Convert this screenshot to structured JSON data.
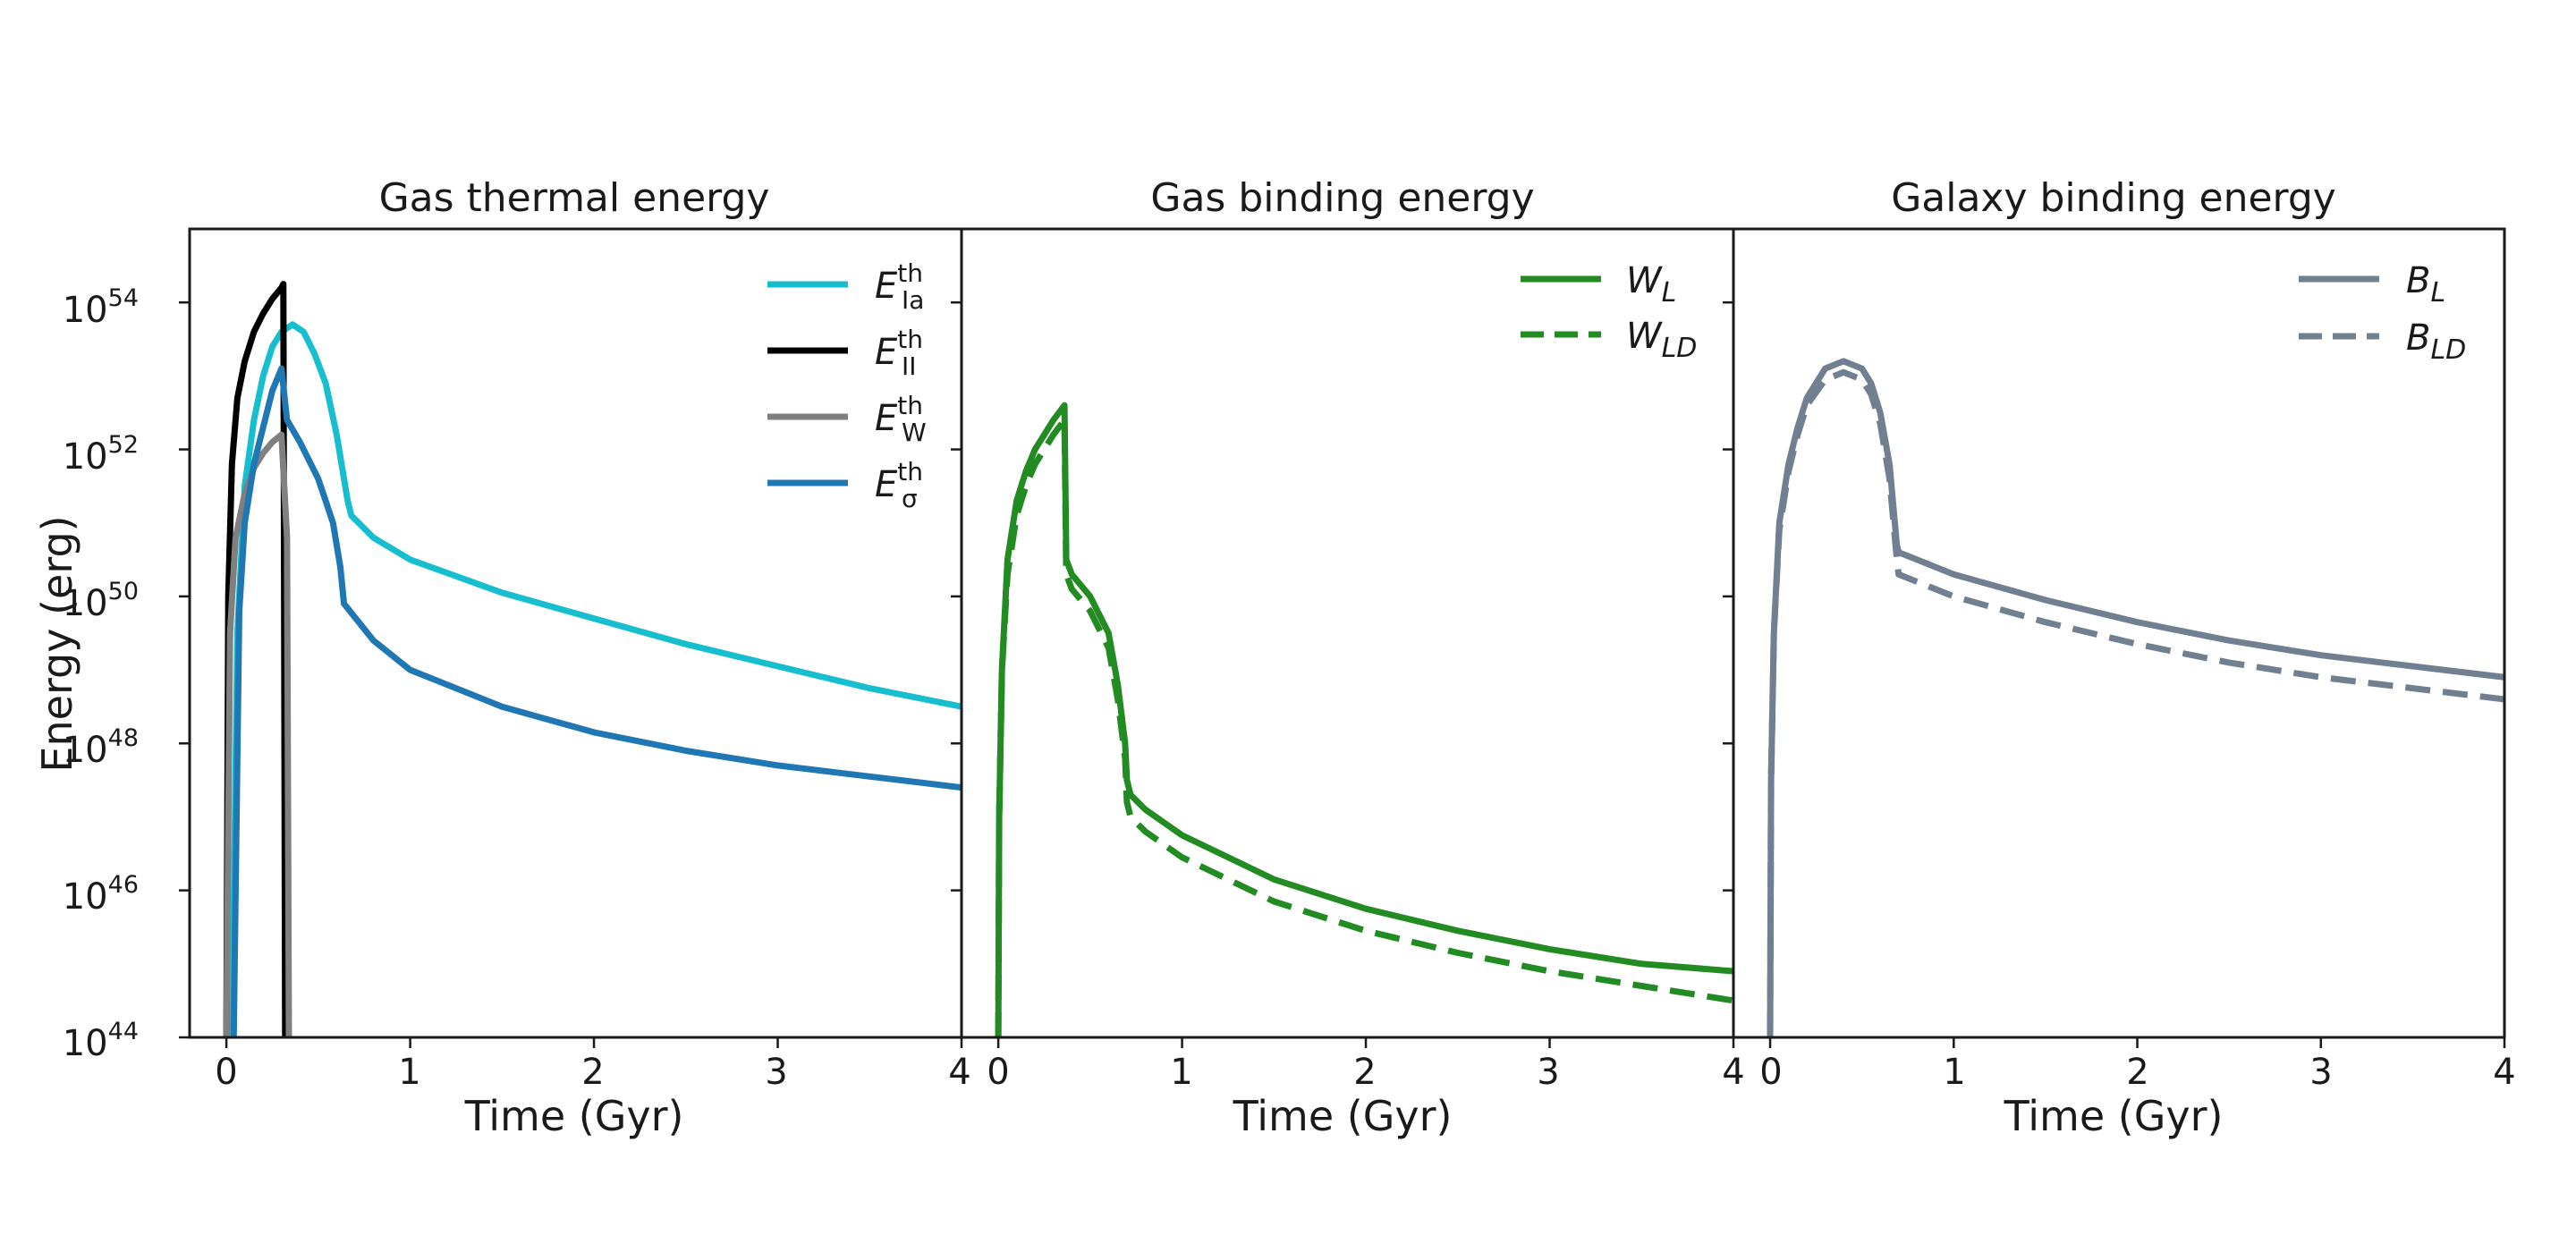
{
  "chart_data": [
    {
      "type": "line",
      "title": "Gas thermal energy",
      "xlabel": "Time (Gyr)",
      "ylabel": "Energy (erg)",
      "xlim": [
        -0.2,
        4
      ],
      "ylim_log10": [
        44,
        55
      ],
      "yscale": "log",
      "xticks": [
        "0",
        "1",
        "2",
        "3",
        "4"
      ],
      "yticks": [
        {
          "base": "10",
          "exp": "44"
        },
        {
          "base": "10",
          "exp": "46"
        },
        {
          "base": "10",
          "exp": "48"
        },
        {
          "base": "10",
          "exp": "50"
        },
        {
          "base": "10",
          "exp": "52"
        },
        {
          "base": "10",
          "exp": "54"
        }
      ],
      "legend_position": "top-right",
      "series": [
        {
          "name": "E_Ia^th",
          "label_base": "E",
          "label_sup": "th",
          "label_sub": "Ia",
          "color": "#17becf",
          "dash": "solid",
          "x": [
            0.03,
            0.06,
            0.1,
            0.15,
            0.2,
            0.25,
            0.3,
            0.36,
            0.42,
            0.48,
            0.54,
            0.6,
            0.66,
            0.68,
            0.8,
            1.0,
            1.5,
            2.0,
            2.5,
            3.0,
            3.5,
            4.0
          ],
          "log_y": [
            44,
            49.5,
            51.5,
            52.4,
            53.0,
            53.4,
            53.6,
            53.7,
            53.6,
            53.3,
            52.9,
            52.2,
            51.3,
            51.1,
            50.8,
            50.5,
            50.05,
            49.7,
            49.35,
            49.05,
            48.75,
            48.5
          ]
        },
        {
          "name": "E_II^th",
          "label_base": "E",
          "label_sup": "th",
          "label_sub": "II",
          "color": "#000000",
          "dash": "solid",
          "x": [
            0.0,
            0.01,
            0.03,
            0.06,
            0.1,
            0.15,
            0.2,
            0.25,
            0.3,
            0.31,
            0.32,
            0.33
          ],
          "log_y": [
            44,
            50.0,
            51.8,
            52.7,
            53.2,
            53.6,
            53.85,
            54.05,
            54.2,
            54.25,
            44,
            44
          ]
        },
        {
          "name": "E_W^th",
          "label_base": "E",
          "label_sup": "th",
          "label_sub": "W",
          "color": "#808080",
          "dash": "solid",
          "x": [
            0.0,
            0.02,
            0.05,
            0.1,
            0.15,
            0.2,
            0.25,
            0.3,
            0.33,
            0.34,
            0.35
          ],
          "log_y": [
            44,
            49.5,
            50.8,
            51.4,
            51.75,
            51.95,
            52.1,
            52.2,
            50.8,
            44,
            44
          ]
        },
        {
          "name": "E_sigma^th",
          "label_base": "E",
          "label_sup": "th",
          "label_sub": "σ",
          "color": "#1f77b4",
          "dash": "solid",
          "x": [
            0.04,
            0.07,
            0.1,
            0.15,
            0.2,
            0.25,
            0.3,
            0.33,
            0.4,
            0.5,
            0.58,
            0.62,
            0.64,
            0.8,
            1.0,
            1.5,
            2.0,
            2.5,
            3.0,
            3.5,
            4.0
          ],
          "log_y": [
            44,
            49.8,
            51.0,
            51.8,
            52.3,
            52.8,
            53.1,
            52.4,
            52.1,
            51.6,
            51.0,
            50.4,
            49.9,
            49.4,
            49.0,
            48.5,
            48.15,
            47.9,
            47.7,
            47.55,
            47.4
          ]
        }
      ]
    },
    {
      "type": "line",
      "title": "Gas binding energy",
      "xlabel": "Time (Gyr)",
      "xlim": [
        -0.2,
        4
      ],
      "ylim_log10": [
        44,
        55
      ],
      "yscale": "log",
      "xticks": [
        "0",
        "1",
        "2",
        "3",
        "4"
      ],
      "legend_position": "top-right",
      "series": [
        {
          "name": "W_L",
          "label_base": "W",
          "label_sub": "L",
          "color": "#228b22",
          "dash": "solid",
          "x": [
            0.0,
            0.005,
            0.02,
            0.05,
            0.1,
            0.15,
            0.2,
            0.25,
            0.3,
            0.36,
            0.37,
            0.4,
            0.5,
            0.6,
            0.65,
            0.69,
            0.7,
            0.72,
            0.8,
            1.0,
            1.5,
            2.0,
            2.5,
            3.0,
            3.5,
            4.0
          ],
          "log_y": [
            44,
            47.0,
            49.0,
            50.5,
            51.3,
            51.7,
            52.0,
            52.2,
            52.4,
            52.6,
            50.5,
            50.3,
            50.0,
            49.5,
            48.8,
            48.0,
            47.5,
            47.3,
            47.1,
            46.75,
            46.15,
            45.75,
            45.45,
            45.2,
            45.0,
            44.9
          ]
        },
        {
          "name": "W_LD",
          "label_base": "W",
          "label_sub": "LD",
          "color": "#228b22",
          "dash": "dashed",
          "x": [
            0.0,
            0.005,
            0.02,
            0.05,
            0.1,
            0.15,
            0.2,
            0.25,
            0.3,
            0.36,
            0.37,
            0.4,
            0.5,
            0.6,
            0.65,
            0.69,
            0.7,
            0.72,
            0.8,
            1.0,
            1.5,
            2.0,
            2.5,
            3.0,
            3.5,
            4.0
          ],
          "log_y": [
            44,
            47.0,
            49.0,
            50.3,
            51.1,
            51.5,
            51.8,
            52.0,
            52.2,
            52.4,
            50.3,
            50.1,
            49.8,
            49.3,
            48.6,
            47.8,
            47.2,
            47.0,
            46.8,
            46.45,
            45.85,
            45.45,
            45.15,
            44.9,
            44.7,
            44.5
          ]
        }
      ]
    },
    {
      "type": "line",
      "title": "Galaxy binding energy",
      "xlabel": "Time (Gyr)",
      "xlim": [
        -0.2,
        4
      ],
      "ylim_log10": [
        44,
        55
      ],
      "yscale": "log",
      "xticks": [
        "0",
        "1",
        "2",
        "3",
        "4"
      ],
      "legend_position": "top-right",
      "series": [
        {
          "name": "B_L",
          "label_base": "B",
          "label_sub": "L",
          "color": "#708090",
          "dash": "solid",
          "x": [
            0.0,
            0.005,
            0.02,
            0.05,
            0.1,
            0.15,
            0.2,
            0.3,
            0.4,
            0.5,
            0.55,
            0.6,
            0.65,
            0.69,
            0.7,
            0.8,
            1.0,
            1.5,
            2.0,
            2.5,
            3.0,
            3.5,
            4.0
          ],
          "log_y": [
            44,
            47.5,
            49.5,
            51.0,
            51.8,
            52.3,
            52.7,
            53.1,
            53.2,
            53.1,
            52.9,
            52.5,
            51.8,
            50.7,
            50.6,
            50.5,
            50.3,
            49.95,
            49.65,
            49.4,
            49.2,
            49.05,
            48.9
          ]
        },
        {
          "name": "B_LD",
          "label_base": "B",
          "label_sub": "LD",
          "color": "#708090",
          "dash": "dashed",
          "x": [
            0.0,
            0.005,
            0.02,
            0.05,
            0.1,
            0.15,
            0.2,
            0.3,
            0.4,
            0.5,
            0.55,
            0.6,
            0.65,
            0.69,
            0.7,
            0.8,
            1.0,
            1.5,
            2.0,
            2.5,
            3.0,
            3.5,
            4.0
          ],
          "log_y": [
            44,
            47.5,
            49.5,
            50.9,
            51.7,
            52.2,
            52.6,
            52.95,
            53.05,
            52.95,
            52.75,
            52.35,
            51.6,
            50.5,
            50.3,
            50.2,
            50.0,
            49.65,
            49.35,
            49.1,
            48.9,
            48.75,
            48.6
          ]
        }
      ]
    }
  ]
}
